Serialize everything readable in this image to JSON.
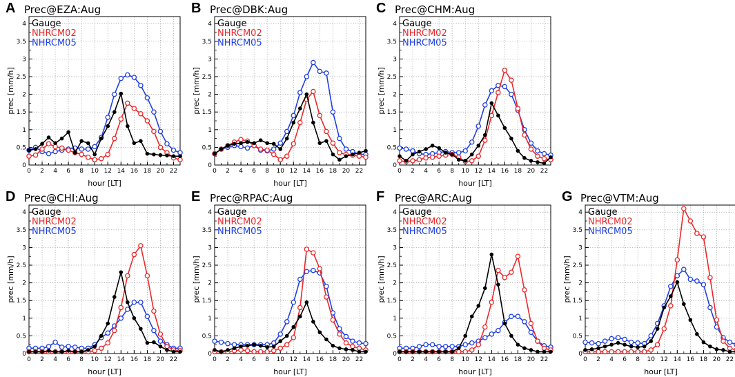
{
  "figure": {
    "domain": "Chart"
  },
  "chart_data": [
    {
      "letter": "A",
      "title": "Prec@EZA:Aug",
      "type": "line",
      "xlabel": "hour [LT]",
      "ylabel": "prec [mm/h]",
      "xlim": [
        0,
        23
      ],
      "ylim": [
        0,
        4.2
      ],
      "xticks": [
        "0",
        "2",
        "4",
        "6",
        "8",
        "10",
        "12",
        "14",
        "16",
        "18",
        "20",
        "22"
      ],
      "yticks": [
        "0",
        "0.5",
        "1",
        "1.5",
        "2",
        "2.5",
        "3",
        "3.5",
        "4"
      ],
      "x": [
        0,
        1,
        2,
        3,
        4,
        5,
        6,
        7,
        8,
        9,
        10,
        11,
        12,
        13,
        14,
        15,
        16,
        17,
        18,
        19,
        20,
        21,
        22,
        23
      ],
      "series": [
        {
          "name": "Gauge",
          "color": "#000000",
          "marker": "filled-dot",
          "values": [
            0.42,
            0.45,
            0.6,
            0.78,
            0.62,
            0.75,
            0.93,
            0.35,
            0.68,
            0.62,
            0.3,
            0.75,
            1.1,
            1.5,
            2.02,
            1.1,
            0.62,
            0.68,
            0.32,
            0.3,
            0.28,
            0.27,
            0.25,
            0.25
          ]
        },
        {
          "name": "NHRCM02",
          "color": "#e8282a",
          "marker": "open-circle",
          "values": [
            0.25,
            0.28,
            0.45,
            0.6,
            0.52,
            0.48,
            0.42,
            0.35,
            0.3,
            0.22,
            0.15,
            0.18,
            0.3,
            0.75,
            1.3,
            1.75,
            1.6,
            1.45,
            1.25,
            0.95,
            0.5,
            0.35,
            0.2,
            0.15
          ]
        },
        {
          "name": "NHRCM05",
          "color": "#1f3fe0",
          "marker": "open-circle",
          "values": [
            0.42,
            0.5,
            0.38,
            0.32,
            0.38,
            0.42,
            0.45,
            0.48,
            0.45,
            0.45,
            0.52,
            0.78,
            1.35,
            2.0,
            2.45,
            2.55,
            2.48,
            2.25,
            1.9,
            1.5,
            0.95,
            0.6,
            0.42,
            0.35
          ]
        }
      ],
      "legend": [
        "Gauge",
        "NHRCM02",
        "NHRCM05"
      ]
    },
    {
      "letter": "B",
      "title": "Prec@DBK:Aug",
      "type": "line",
      "xlabel": "hour [LT]",
      "ylabel": "prec [mm/h]",
      "xlim": [
        0,
        23
      ],
      "ylim": [
        0,
        4.2
      ],
      "xticks": [
        "0",
        "2",
        "4",
        "6",
        "8",
        "10",
        "12",
        "14",
        "16",
        "18",
        "20",
        "22"
      ],
      "yticks": [
        "0",
        "0.5",
        "1",
        "1.5",
        "2",
        "2.5",
        "3",
        "3.5",
        "4"
      ],
      "x": [
        0,
        1,
        2,
        3,
        4,
        5,
        6,
        7,
        8,
        9,
        10,
        11,
        12,
        13,
        14,
        15,
        16,
        17,
        18,
        19,
        20,
        21,
        22,
        23
      ],
      "series": [
        {
          "name": "Gauge",
          "color": "#000000",
          "marker": "filled-dot",
          "values": [
            0.32,
            0.45,
            0.55,
            0.6,
            0.62,
            0.65,
            0.62,
            0.7,
            0.62,
            0.6,
            0.45,
            0.75,
            1.2,
            1.6,
            2.0,
            1.2,
            0.62,
            0.68,
            0.3,
            0.15,
            0.25,
            0.3,
            0.35,
            0.4
          ]
        },
        {
          "name": "NHRCM02",
          "color": "#e8282a",
          "marker": "open-circle",
          "values": [
            0.32,
            0.45,
            0.55,
            0.65,
            0.72,
            0.68,
            0.55,
            0.45,
            0.42,
            0.3,
            0.15,
            0.25,
            0.6,
            1.2,
            1.85,
            2.08,
            1.4,
            0.95,
            0.62,
            0.35,
            0.3,
            0.28,
            0.25,
            0.22
          ]
        },
        {
          "name": "NHRCM05",
          "color": "#1f3fe0",
          "marker": "open-circle",
          "values": [
            0.32,
            0.45,
            0.5,
            0.55,
            0.52,
            0.48,
            0.55,
            0.42,
            0.4,
            0.45,
            0.62,
            0.95,
            1.4,
            2.05,
            2.5,
            2.9,
            2.65,
            2.6,
            1.5,
            0.75,
            0.45,
            0.38,
            0.3,
            0.3
          ]
        }
      ],
      "legend": [
        "Gauge",
        "NHRCM02",
        "NHRCM05"
      ]
    },
    {
      "letter": "C",
      "title": "Prec@CHM:Aug",
      "type": "line",
      "xlabel": "hour [LT]",
      "ylabel": "prec [mm/h]",
      "xlim": [
        0,
        23
      ],
      "ylim": [
        0,
        4.2
      ],
      "xticks": [
        "0",
        "2",
        "4",
        "6",
        "8",
        "10",
        "12",
        "14",
        "16",
        "18",
        "20",
        "22"
      ],
      "yticks": [
        "0",
        "0.5",
        "1",
        "1.5",
        "2",
        "2.5",
        "3",
        "3.5",
        "4"
      ],
      "x": [
        0,
        1,
        2,
        3,
        4,
        5,
        6,
        7,
        8,
        9,
        10,
        11,
        12,
        13,
        14,
        15,
        16,
        17,
        18,
        19,
        20,
        21,
        22,
        23
      ],
      "series": [
        {
          "name": "Gauge",
          "color": "#000000",
          "marker": "filled-dot",
          "values": [
            0.25,
            0.12,
            0.3,
            0.38,
            0.45,
            0.55,
            0.48,
            0.35,
            0.3,
            0.15,
            0.12,
            0.3,
            0.55,
            0.85,
            1.75,
            1.4,
            1.05,
            0.75,
            0.4,
            0.2,
            0.12,
            0.08,
            0.05,
            0.22
          ]
        },
        {
          "name": "NHRCM02",
          "color": "#e8282a",
          "marker": "open-circle",
          "values": [
            0.12,
            0.1,
            0.12,
            0.15,
            0.2,
            0.22,
            0.25,
            0.28,
            0.3,
            0.22,
            0.1,
            0.12,
            0.25,
            0.7,
            1.4,
            2.05,
            2.68,
            2.4,
            1.6,
            0.85,
            0.45,
            0.25,
            0.18,
            0.15
          ]
        },
        {
          "name": "NHRCM05",
          "color": "#1f3fe0",
          "marker": "open-circle",
          "values": [
            0.48,
            0.45,
            0.4,
            0.32,
            0.3,
            0.32,
            0.35,
            0.38,
            0.35,
            0.35,
            0.4,
            0.65,
            1.1,
            1.7,
            2.1,
            2.25,
            2.22,
            2.0,
            1.55,
            1.0,
            0.62,
            0.4,
            0.32,
            0.28
          ]
        }
      ],
      "legend": [
        "Gauge",
        "NHRCM02",
        "NHRCM05"
      ]
    },
    {
      "letter": "D",
      "title": "Prec@CHI:Aug",
      "type": "line",
      "xlabel": "hour [LT]",
      "ylabel": "prec [mm/h]",
      "xlim": [
        0,
        23
      ],
      "ylim": [
        0,
        4.2
      ],
      "xticks": [
        "0",
        "2",
        "4",
        "6",
        "8",
        "10",
        "12",
        "14",
        "16",
        "18",
        "20",
        "22"
      ],
      "yticks": [
        "0",
        "0.5",
        "1",
        "1.5",
        "2",
        "2.5",
        "3",
        "3.5",
        "4"
      ],
      "x": [
        0,
        1,
        2,
        3,
        4,
        5,
        6,
        7,
        8,
        9,
        10,
        11,
        12,
        13,
        14,
        15,
        16,
        17,
        18,
        19,
        20,
        21,
        22,
        23
      ],
      "series": [
        {
          "name": "Gauge",
          "color": "#000000",
          "marker": "filled-dot",
          "values": [
            0.05,
            0.05,
            0.05,
            0.08,
            0.05,
            0.05,
            0.08,
            0.05,
            0.05,
            0.1,
            0.2,
            0.5,
            0.85,
            1.6,
            2.3,
            1.45,
            1.0,
            0.7,
            0.3,
            0.32,
            0.2,
            0.1,
            0.05,
            0.05
          ]
        },
        {
          "name": "NHRCM02",
          "color": "#e8282a",
          "marker": "open-circle",
          "values": [
            0.05,
            0.05,
            0.05,
            0.05,
            0.05,
            0.05,
            0.05,
            0.05,
            0.05,
            0.05,
            0.08,
            0.15,
            0.3,
            0.65,
            1.3,
            2.2,
            2.8,
            3.05,
            2.2,
            1.2,
            0.55,
            0.2,
            0.1,
            0.08
          ]
        },
        {
          "name": "NHRCM05",
          "color": "#1f3fe0",
          "marker": "open-circle",
          "values": [
            0.15,
            0.15,
            0.15,
            0.2,
            0.32,
            0.18,
            0.2,
            0.18,
            0.15,
            0.15,
            0.25,
            0.45,
            0.58,
            0.78,
            1.0,
            1.25,
            1.45,
            1.45,
            1.05,
            0.65,
            0.35,
            0.25,
            0.15,
            0.15
          ]
        }
      ],
      "legend": [
        "Gauge",
        "NHRCM02",
        "NHRCM05"
      ]
    },
    {
      "letter": "E",
      "title": "Prec@RPAC:Aug",
      "type": "line",
      "xlabel": "hour [LT]",
      "ylabel": "prec [mm/h]",
      "xlim": [
        0,
        23
      ],
      "ylim": [
        0,
        4.2
      ],
      "xticks": [
        "0",
        "2",
        "4",
        "6",
        "8",
        "10",
        "12",
        "14",
        "16",
        "18",
        "20",
        "22"
      ],
      "yticks": [
        "0",
        "0.5",
        "1",
        "1.5",
        "2",
        "2.5",
        "3",
        "3.5",
        "4"
      ],
      "x": [
        0,
        1,
        2,
        3,
        4,
        5,
        6,
        7,
        8,
        9,
        10,
        11,
        12,
        13,
        14,
        15,
        16,
        17,
        18,
        19,
        20,
        21,
        22,
        23
      ],
      "series": [
        {
          "name": "Gauge",
          "color": "#000000",
          "marker": "filled-dot",
          "values": [
            0.1,
            0.05,
            0.1,
            0.15,
            0.2,
            0.22,
            0.25,
            0.22,
            0.18,
            0.2,
            0.35,
            0.5,
            0.75,
            1.05,
            1.45,
            0.9,
            0.6,
            0.4,
            0.22,
            0.15,
            0.12,
            0.1,
            0.05,
            0.05
          ]
        },
        {
          "name": "NHRCM02",
          "color": "#e8282a",
          "marker": "open-circle",
          "values": [
            0.05,
            0.05,
            0.05,
            0.08,
            0.1,
            0.08,
            0.05,
            0.05,
            0.05,
            0.08,
            0.15,
            0.25,
            0.45,
            1.3,
            2.95,
            2.85,
            2.4,
            1.6,
            0.95,
            0.55,
            0.3,
            0.2,
            0.15,
            0.1
          ]
        },
        {
          "name": "NHRCM05",
          "color": "#1f3fe0",
          "marker": "open-circle",
          "values": [
            0.35,
            0.32,
            0.28,
            0.25,
            0.25,
            0.25,
            0.25,
            0.25,
            0.25,
            0.3,
            0.55,
            0.9,
            1.45,
            2.1,
            2.32,
            2.35,
            2.28,
            1.9,
            1.15,
            0.7,
            0.48,
            0.35,
            0.3,
            0.28
          ]
        }
      ],
      "legend": [
        "Gauge",
        "NHRCM02",
        "NHRCM05"
      ]
    },
    {
      "letter": "F",
      "title": "Prec@ARC:Aug",
      "type": "line",
      "xlabel": "hour [LT]",
      "ylabel": "prec [mm/h]",
      "xlim": [
        0,
        23
      ],
      "ylim": [
        0,
        4.2
      ],
      "xticks": [
        "0",
        "2",
        "4",
        "6",
        "8",
        "10",
        "12",
        "14",
        "16",
        "18",
        "20",
        "22"
      ],
      "yticks": [
        "0",
        "0.5",
        "1",
        "1.5",
        "2",
        "2.5",
        "3",
        "3.5",
        "4"
      ],
      "x": [
        0,
        1,
        2,
        3,
        4,
        5,
        6,
        7,
        8,
        9,
        10,
        11,
        12,
        13,
        14,
        15,
        16,
        17,
        18,
        19,
        20,
        21,
        22,
        23
      ],
      "series": [
        {
          "name": "Gauge",
          "color": "#000000",
          "marker": "filled-dot",
          "values": [
            0.05,
            0.05,
            0.05,
            0.05,
            0.05,
            0.05,
            0.05,
            0.05,
            0.05,
            0.15,
            0.5,
            1.05,
            1.35,
            1.85,
            2.8,
            1.95,
            0.85,
            0.5,
            0.25,
            0.15,
            0.1,
            0.05,
            0.05,
            0.05
          ]
        },
        {
          "name": "NHRCM02",
          "color": "#e8282a",
          "marker": "open-circle",
          "values": [
            0.05,
            0.05,
            0.05,
            0.05,
            0.05,
            0.05,
            0.05,
            0.05,
            0.05,
            0.05,
            0.05,
            0.1,
            0.25,
            0.75,
            1.45,
            2.35,
            2.15,
            2.3,
            2.75,
            1.8,
            0.85,
            0.35,
            0.15,
            0.1
          ]
        },
        {
          "name": "NHRCM05",
          "color": "#1f3fe0",
          "marker": "open-circle",
          "values": [
            0.15,
            0.15,
            0.15,
            0.2,
            0.25,
            0.25,
            0.2,
            0.2,
            0.2,
            0.2,
            0.25,
            0.3,
            0.35,
            0.45,
            0.55,
            0.65,
            0.88,
            1.05,
            1.05,
            0.9,
            0.6,
            0.35,
            0.22,
            0.18
          ]
        }
      ],
      "legend": [
        "Gauge",
        "NHRCM02",
        "NHRCM05"
      ]
    },
    {
      "letter": "G",
      "title": "Prec@VTM:Aug",
      "type": "line",
      "xlabel": "hour [LT]",
      "ylabel": "prec [mm/h]",
      "xlim": [
        0,
        23
      ],
      "ylim": [
        0,
        4.2
      ],
      "xticks": [
        "0",
        "2",
        "4",
        "6",
        "8",
        "10",
        "12",
        "14",
        "16",
        "18",
        "20",
        "22"
      ],
      "yticks": [
        "0",
        "0.5",
        "1",
        "1.5",
        "2",
        "2.5",
        "3",
        "3.5",
        "4"
      ],
      "x": [
        0,
        1,
        2,
        3,
        4,
        5,
        6,
        7,
        8,
        9,
        10,
        11,
        12,
        13,
        14,
        15,
        16,
        17,
        18,
        19,
        20,
        21,
        22,
        23
      ],
      "series": [
        {
          "name": "Gauge",
          "color": "#000000",
          "marker": "filled-dot",
          "values": [
            0.1,
            0.12,
            0.15,
            0.2,
            0.25,
            0.3,
            0.25,
            0.2,
            0.18,
            0.2,
            0.35,
            0.7,
            1.3,
            1.62,
            2.02,
            1.4,
            0.95,
            0.55,
            0.32,
            0.2,
            0.12,
            0.1,
            0.05,
            0.05
          ]
        },
        {
          "name": "NHRCM02",
          "color": "#e8282a",
          "marker": "open-circle",
          "values": [
            0.05,
            0.05,
            0.05,
            0.05,
            0.05,
            0.05,
            0.05,
            0.05,
            0.05,
            0.05,
            0.1,
            0.25,
            0.7,
            1.35,
            2.65,
            4.1,
            3.75,
            3.4,
            3.3,
            2.15,
            0.95,
            0.35,
            0.15,
            0.1
          ]
        },
        {
          "name": "NHRCM05",
          "color": "#1f3fe0",
          "marker": "open-circle",
          "values": [
            0.32,
            0.3,
            0.28,
            0.35,
            0.42,
            0.45,
            0.4,
            0.32,
            0.3,
            0.28,
            0.5,
            0.85,
            1.35,
            1.9,
            2.2,
            2.38,
            2.1,
            2.05,
            1.95,
            1.3,
            0.75,
            0.45,
            0.32,
            0.25
          ]
        }
      ],
      "legend": [
        "Gauge",
        "NHRCM02",
        "NHRCM05"
      ]
    }
  ]
}
